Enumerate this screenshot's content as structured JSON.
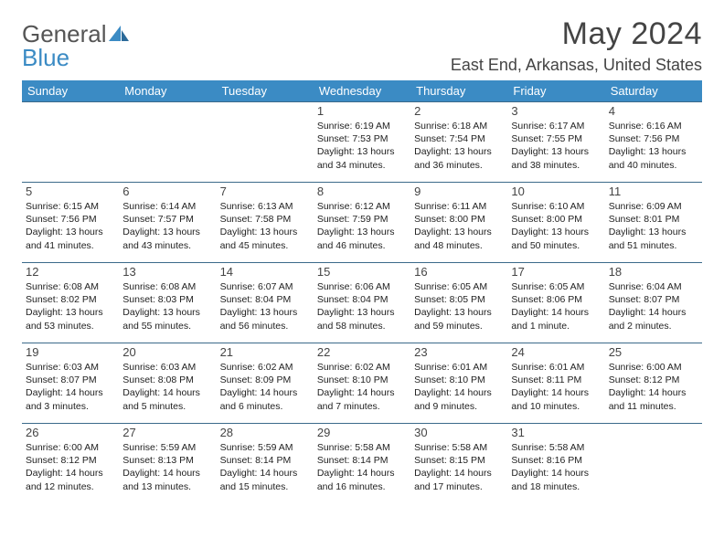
{
  "logo": {
    "word1": "General",
    "word2": "Blue"
  },
  "title": "May 2024",
  "location": "East End, Arkansas, United States",
  "colors": {
    "header_bg": "#3b8bc4",
    "header_text": "#ffffff",
    "cell_border": "#3b6a8a",
    "text": "#222222",
    "logo_gray": "#555555",
    "logo_blue": "#3b8bc4",
    "background": "#ffffff"
  },
  "fonts": {
    "body_family": "Arial",
    "title_size_pt": 26,
    "location_size_pt": 14,
    "cell_size_pt": 8
  },
  "weekdays": [
    "Sunday",
    "Monday",
    "Tuesday",
    "Wednesday",
    "Thursday",
    "Friday",
    "Saturday"
  ],
  "weeks": [
    [
      null,
      null,
      null,
      {
        "n": "1",
        "sr": "Sunrise: 6:19 AM",
        "ss": "Sunset: 7:53 PM",
        "d1": "Daylight: 13 hours",
        "d2": "and 34 minutes."
      },
      {
        "n": "2",
        "sr": "Sunrise: 6:18 AM",
        "ss": "Sunset: 7:54 PM",
        "d1": "Daylight: 13 hours",
        "d2": "and 36 minutes."
      },
      {
        "n": "3",
        "sr": "Sunrise: 6:17 AM",
        "ss": "Sunset: 7:55 PM",
        "d1": "Daylight: 13 hours",
        "d2": "and 38 minutes."
      },
      {
        "n": "4",
        "sr": "Sunrise: 6:16 AM",
        "ss": "Sunset: 7:56 PM",
        "d1": "Daylight: 13 hours",
        "d2": "and 40 minutes."
      }
    ],
    [
      {
        "n": "5",
        "sr": "Sunrise: 6:15 AM",
        "ss": "Sunset: 7:56 PM",
        "d1": "Daylight: 13 hours",
        "d2": "and 41 minutes."
      },
      {
        "n": "6",
        "sr": "Sunrise: 6:14 AM",
        "ss": "Sunset: 7:57 PM",
        "d1": "Daylight: 13 hours",
        "d2": "and 43 minutes."
      },
      {
        "n": "7",
        "sr": "Sunrise: 6:13 AM",
        "ss": "Sunset: 7:58 PM",
        "d1": "Daylight: 13 hours",
        "d2": "and 45 minutes."
      },
      {
        "n": "8",
        "sr": "Sunrise: 6:12 AM",
        "ss": "Sunset: 7:59 PM",
        "d1": "Daylight: 13 hours",
        "d2": "and 46 minutes."
      },
      {
        "n": "9",
        "sr": "Sunrise: 6:11 AM",
        "ss": "Sunset: 8:00 PM",
        "d1": "Daylight: 13 hours",
        "d2": "and 48 minutes."
      },
      {
        "n": "10",
        "sr": "Sunrise: 6:10 AM",
        "ss": "Sunset: 8:00 PM",
        "d1": "Daylight: 13 hours",
        "d2": "and 50 minutes."
      },
      {
        "n": "11",
        "sr": "Sunrise: 6:09 AM",
        "ss": "Sunset: 8:01 PM",
        "d1": "Daylight: 13 hours",
        "d2": "and 51 minutes."
      }
    ],
    [
      {
        "n": "12",
        "sr": "Sunrise: 6:08 AM",
        "ss": "Sunset: 8:02 PM",
        "d1": "Daylight: 13 hours",
        "d2": "and 53 minutes."
      },
      {
        "n": "13",
        "sr": "Sunrise: 6:08 AM",
        "ss": "Sunset: 8:03 PM",
        "d1": "Daylight: 13 hours",
        "d2": "and 55 minutes."
      },
      {
        "n": "14",
        "sr": "Sunrise: 6:07 AM",
        "ss": "Sunset: 8:04 PM",
        "d1": "Daylight: 13 hours",
        "d2": "and 56 minutes."
      },
      {
        "n": "15",
        "sr": "Sunrise: 6:06 AM",
        "ss": "Sunset: 8:04 PM",
        "d1": "Daylight: 13 hours",
        "d2": "and 58 minutes."
      },
      {
        "n": "16",
        "sr": "Sunrise: 6:05 AM",
        "ss": "Sunset: 8:05 PM",
        "d1": "Daylight: 13 hours",
        "d2": "and 59 minutes."
      },
      {
        "n": "17",
        "sr": "Sunrise: 6:05 AM",
        "ss": "Sunset: 8:06 PM",
        "d1": "Daylight: 14 hours",
        "d2": "and 1 minute."
      },
      {
        "n": "18",
        "sr": "Sunrise: 6:04 AM",
        "ss": "Sunset: 8:07 PM",
        "d1": "Daylight: 14 hours",
        "d2": "and 2 minutes."
      }
    ],
    [
      {
        "n": "19",
        "sr": "Sunrise: 6:03 AM",
        "ss": "Sunset: 8:07 PM",
        "d1": "Daylight: 14 hours",
        "d2": "and 3 minutes."
      },
      {
        "n": "20",
        "sr": "Sunrise: 6:03 AM",
        "ss": "Sunset: 8:08 PM",
        "d1": "Daylight: 14 hours",
        "d2": "and 5 minutes."
      },
      {
        "n": "21",
        "sr": "Sunrise: 6:02 AM",
        "ss": "Sunset: 8:09 PM",
        "d1": "Daylight: 14 hours",
        "d2": "and 6 minutes."
      },
      {
        "n": "22",
        "sr": "Sunrise: 6:02 AM",
        "ss": "Sunset: 8:10 PM",
        "d1": "Daylight: 14 hours",
        "d2": "and 7 minutes."
      },
      {
        "n": "23",
        "sr": "Sunrise: 6:01 AM",
        "ss": "Sunset: 8:10 PM",
        "d1": "Daylight: 14 hours",
        "d2": "and 9 minutes."
      },
      {
        "n": "24",
        "sr": "Sunrise: 6:01 AM",
        "ss": "Sunset: 8:11 PM",
        "d1": "Daylight: 14 hours",
        "d2": "and 10 minutes."
      },
      {
        "n": "25",
        "sr": "Sunrise: 6:00 AM",
        "ss": "Sunset: 8:12 PM",
        "d1": "Daylight: 14 hours",
        "d2": "and 11 minutes."
      }
    ],
    [
      {
        "n": "26",
        "sr": "Sunrise: 6:00 AM",
        "ss": "Sunset: 8:12 PM",
        "d1": "Daylight: 14 hours",
        "d2": "and 12 minutes."
      },
      {
        "n": "27",
        "sr": "Sunrise: 5:59 AM",
        "ss": "Sunset: 8:13 PM",
        "d1": "Daylight: 14 hours",
        "d2": "and 13 minutes."
      },
      {
        "n": "28",
        "sr": "Sunrise: 5:59 AM",
        "ss": "Sunset: 8:14 PM",
        "d1": "Daylight: 14 hours",
        "d2": "and 15 minutes."
      },
      {
        "n": "29",
        "sr": "Sunrise: 5:58 AM",
        "ss": "Sunset: 8:14 PM",
        "d1": "Daylight: 14 hours",
        "d2": "and 16 minutes."
      },
      {
        "n": "30",
        "sr": "Sunrise: 5:58 AM",
        "ss": "Sunset: 8:15 PM",
        "d1": "Daylight: 14 hours",
        "d2": "and 17 minutes."
      },
      {
        "n": "31",
        "sr": "Sunrise: 5:58 AM",
        "ss": "Sunset: 8:16 PM",
        "d1": "Daylight: 14 hours",
        "d2": "and 18 minutes."
      },
      null
    ]
  ]
}
